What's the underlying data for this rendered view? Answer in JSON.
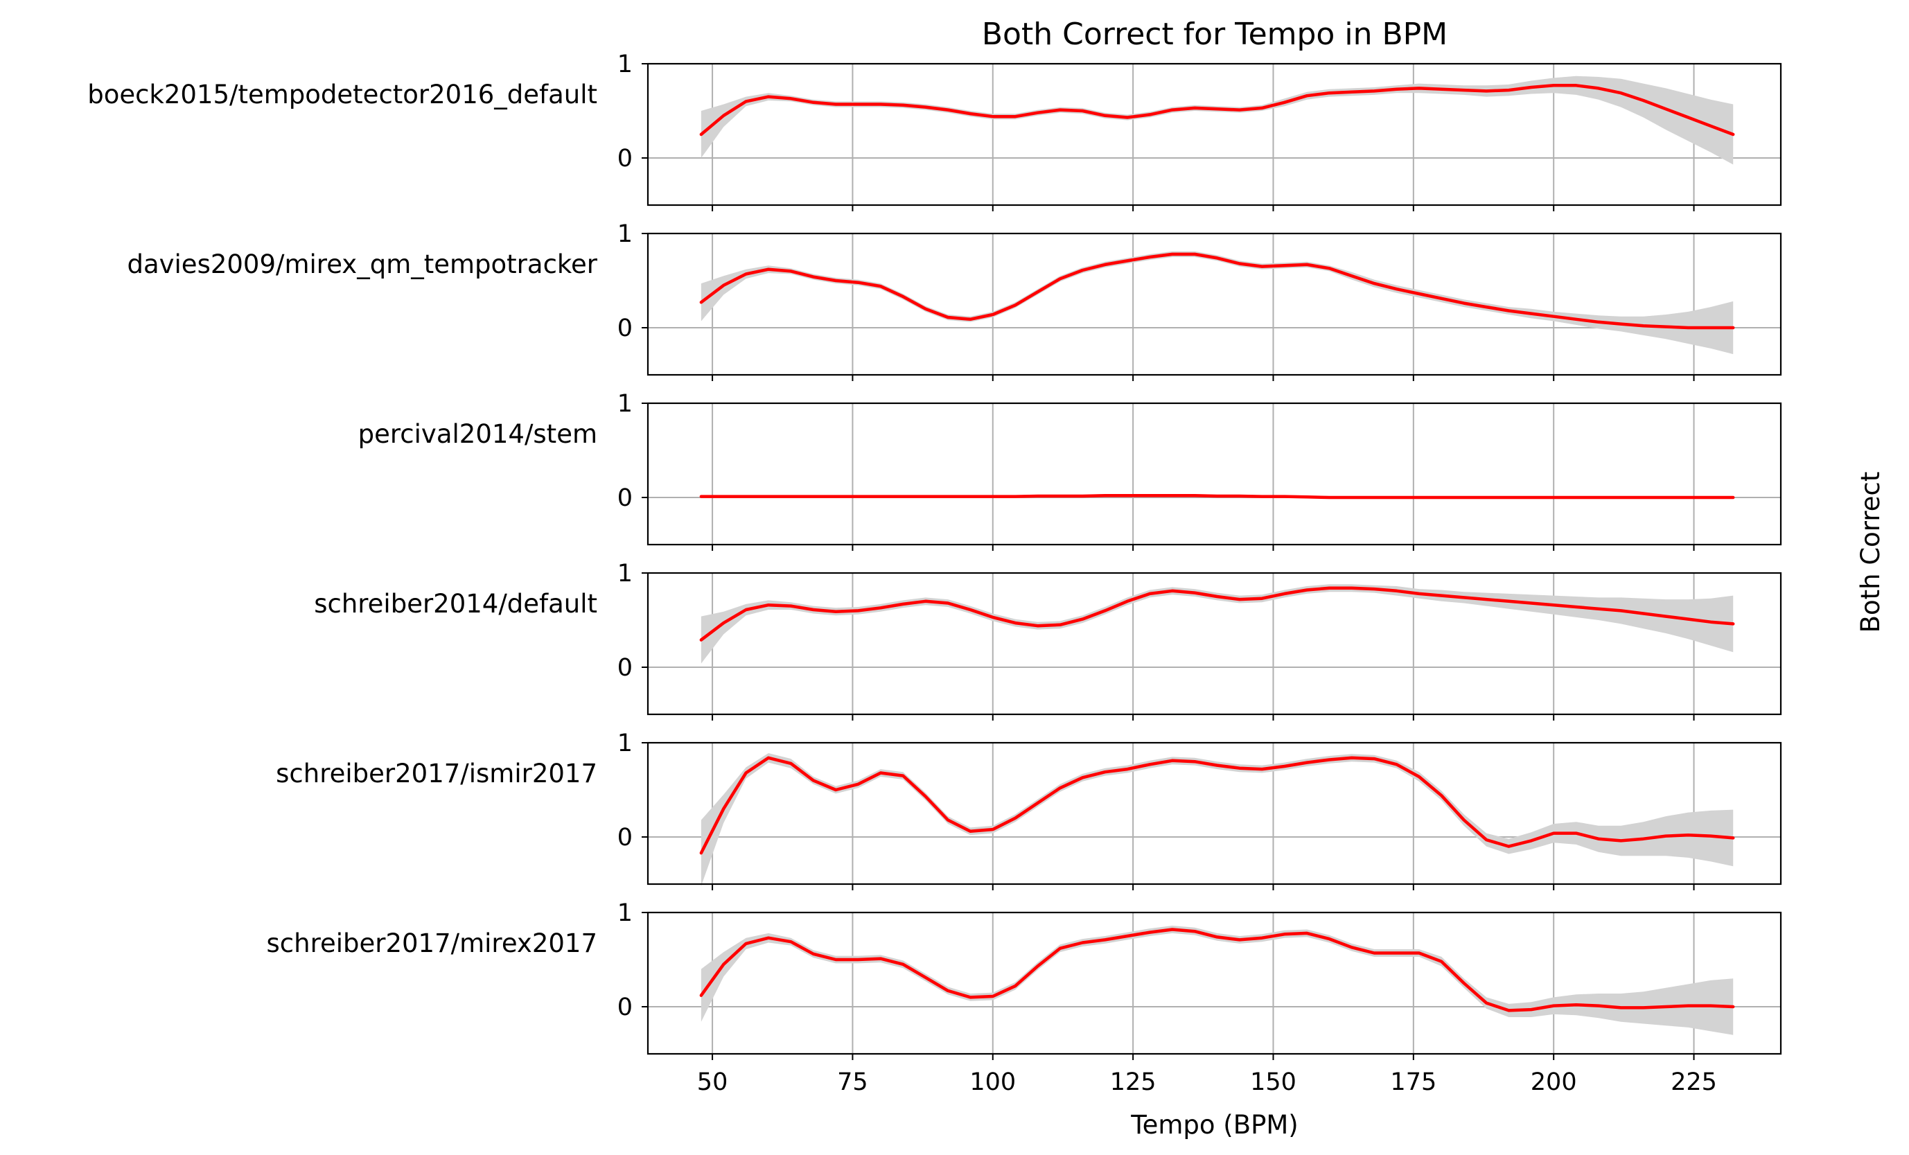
{
  "chart_data": {
    "type": "line",
    "title": "Both Correct for Tempo in BPM",
    "xlabel": "Tempo (BPM)",
    "ylabel": "Both Correct",
    "x_ticks": [
      50,
      75,
      100,
      125,
      150,
      175,
      200,
      225
    ],
    "y_ticks": [
      0,
      1
    ],
    "xlim": [
      38.5,
      240.5
    ],
    "ylim": [
      -0.5,
      1.0
    ],
    "grid": true,
    "band_color": "#d3d3d3",
    "line_color": "#ff0000",
    "x": [
      48,
      52,
      56,
      60,
      64,
      68,
      72,
      76,
      80,
      84,
      88,
      92,
      96,
      100,
      104,
      108,
      112,
      116,
      120,
      124,
      128,
      132,
      136,
      140,
      144,
      148,
      152,
      156,
      160,
      164,
      168,
      172,
      176,
      180,
      184,
      188,
      192,
      196,
      200,
      204,
      208,
      212,
      216,
      220,
      224,
      228,
      232
    ],
    "series": [
      {
        "name": "boeck2015/tempodetector2016_default",
        "values": [
          0.25,
          0.45,
          0.6,
          0.65,
          0.63,
          0.59,
          0.57,
          0.57,
          0.57,
          0.56,
          0.54,
          0.51,
          0.47,
          0.44,
          0.44,
          0.48,
          0.51,
          0.5,
          0.45,
          0.43,
          0.46,
          0.51,
          0.53,
          0.52,
          0.51,
          0.53,
          0.59,
          0.66,
          0.69,
          0.7,
          0.71,
          0.73,
          0.74,
          0.73,
          0.72,
          0.71,
          0.72,
          0.75,
          0.77,
          0.77,
          0.74,
          0.69,
          0.61,
          0.52,
          0.43,
          0.34,
          0.25
        ],
        "band": [
          0.25,
          0.12,
          0.05,
          0.04,
          0.03,
          0.03,
          0.03,
          0.03,
          0.03,
          0.03,
          0.03,
          0.03,
          0.03,
          0.03,
          0.03,
          0.03,
          0.03,
          0.03,
          0.03,
          0.03,
          0.03,
          0.03,
          0.03,
          0.03,
          0.03,
          0.03,
          0.04,
          0.04,
          0.04,
          0.04,
          0.04,
          0.04,
          0.05,
          0.05,
          0.05,
          0.06,
          0.06,
          0.07,
          0.08,
          0.1,
          0.12,
          0.15,
          0.18,
          0.22,
          0.25,
          0.28,
          0.32
        ]
      },
      {
        "name": "davies2009/mirex_qm_tempotracker",
        "values": [
          0.27,
          0.45,
          0.57,
          0.62,
          0.6,
          0.54,
          0.5,
          0.48,
          0.44,
          0.33,
          0.2,
          0.11,
          0.09,
          0.14,
          0.24,
          0.38,
          0.52,
          0.61,
          0.67,
          0.71,
          0.75,
          0.78,
          0.78,
          0.74,
          0.68,
          0.65,
          0.66,
          0.67,
          0.63,
          0.55,
          0.47,
          0.41,
          0.36,
          0.31,
          0.26,
          0.22,
          0.18,
          0.15,
          0.12,
          0.09,
          0.06,
          0.04,
          0.02,
          0.01,
          0.0,
          0.0,
          0.0
        ],
        "band": [
          0.2,
          0.1,
          0.05,
          0.04,
          0.03,
          0.03,
          0.03,
          0.03,
          0.03,
          0.03,
          0.03,
          0.03,
          0.03,
          0.03,
          0.03,
          0.03,
          0.03,
          0.03,
          0.03,
          0.03,
          0.03,
          0.03,
          0.03,
          0.03,
          0.03,
          0.03,
          0.03,
          0.03,
          0.03,
          0.04,
          0.04,
          0.04,
          0.04,
          0.04,
          0.04,
          0.04,
          0.04,
          0.05,
          0.05,
          0.06,
          0.07,
          0.08,
          0.1,
          0.13,
          0.17,
          0.22,
          0.28
        ]
      },
      {
        "name": "percival2014/stem",
        "values": [
          0.01,
          0.01,
          0.01,
          0.01,
          0.01,
          0.01,
          0.01,
          0.01,
          0.01,
          0.01,
          0.01,
          0.01,
          0.01,
          0.01,
          0.01,
          0.015,
          0.015,
          0.015,
          0.02,
          0.02,
          0.02,
          0.02,
          0.02,
          0.015,
          0.015,
          0.01,
          0.01,
          0.005,
          0.0,
          0.0,
          0.0,
          0.0,
          0.0,
          0.0,
          0.0,
          0.0,
          0.0,
          0.0,
          0.0,
          0.0,
          0.0,
          0.0,
          0.0,
          0.0,
          0.0,
          0.0,
          0.0
        ],
        "band": [
          0.015,
          0.015,
          0.015,
          0.015,
          0.015,
          0.015,
          0.015,
          0.015,
          0.015,
          0.015,
          0.015,
          0.015,
          0.015,
          0.015,
          0.015,
          0.015,
          0.015,
          0.015,
          0.015,
          0.015,
          0.015,
          0.015,
          0.015,
          0.015,
          0.015,
          0.015,
          0.015,
          0.015,
          0.015,
          0.015,
          0.015,
          0.015,
          0.015,
          0.015,
          0.015,
          0.015,
          0.015,
          0.015,
          0.015,
          0.015,
          0.015,
          0.015,
          0.015,
          0.015,
          0.015,
          0.015,
          0.015
        ]
      },
      {
        "name": "schreiber2014/default",
        "values": [
          0.29,
          0.47,
          0.61,
          0.66,
          0.65,
          0.61,
          0.59,
          0.6,
          0.63,
          0.67,
          0.7,
          0.68,
          0.61,
          0.53,
          0.47,
          0.44,
          0.45,
          0.51,
          0.6,
          0.7,
          0.78,
          0.81,
          0.79,
          0.75,
          0.72,
          0.73,
          0.78,
          0.82,
          0.84,
          0.84,
          0.83,
          0.81,
          0.78,
          0.76,
          0.74,
          0.72,
          0.7,
          0.68,
          0.66,
          0.64,
          0.62,
          0.6,
          0.57,
          0.54,
          0.51,
          0.48,
          0.46
        ],
        "band": [
          0.25,
          0.12,
          0.06,
          0.05,
          0.04,
          0.04,
          0.04,
          0.04,
          0.04,
          0.04,
          0.04,
          0.04,
          0.04,
          0.04,
          0.04,
          0.04,
          0.04,
          0.04,
          0.04,
          0.04,
          0.04,
          0.04,
          0.04,
          0.04,
          0.04,
          0.04,
          0.04,
          0.04,
          0.04,
          0.04,
          0.04,
          0.05,
          0.05,
          0.06,
          0.06,
          0.07,
          0.08,
          0.09,
          0.1,
          0.11,
          0.12,
          0.14,
          0.16,
          0.18,
          0.21,
          0.25,
          0.3
        ]
      },
      {
        "name": "schreiber2017/ismir2017",
        "values": [
          -0.17,
          0.3,
          0.68,
          0.84,
          0.78,
          0.6,
          0.5,
          0.56,
          0.68,
          0.65,
          0.43,
          0.18,
          0.06,
          0.08,
          0.2,
          0.36,
          0.52,
          0.63,
          0.69,
          0.72,
          0.77,
          0.81,
          0.8,
          0.76,
          0.73,
          0.72,
          0.75,
          0.79,
          0.82,
          0.84,
          0.83,
          0.77,
          0.64,
          0.44,
          0.18,
          -0.03,
          -0.1,
          -0.04,
          0.04,
          0.04,
          -0.02,
          -0.04,
          -0.02,
          0.01,
          0.02,
          0.01,
          -0.01
        ],
        "band": [
          0.35,
          0.15,
          0.06,
          0.05,
          0.05,
          0.04,
          0.04,
          0.04,
          0.04,
          0.04,
          0.04,
          0.04,
          0.04,
          0.04,
          0.04,
          0.04,
          0.04,
          0.04,
          0.04,
          0.04,
          0.04,
          0.04,
          0.04,
          0.04,
          0.04,
          0.04,
          0.04,
          0.04,
          0.04,
          0.04,
          0.04,
          0.04,
          0.05,
          0.05,
          0.06,
          0.07,
          0.08,
          0.09,
          0.1,
          0.12,
          0.14,
          0.16,
          0.18,
          0.21,
          0.24,
          0.27,
          0.3
        ]
      },
      {
        "name": "schreiber2017/mirex2017",
        "values": [
          0.12,
          0.45,
          0.67,
          0.73,
          0.69,
          0.56,
          0.5,
          0.5,
          0.51,
          0.45,
          0.31,
          0.17,
          0.1,
          0.11,
          0.22,
          0.43,
          0.62,
          0.68,
          0.71,
          0.75,
          0.79,
          0.82,
          0.8,
          0.74,
          0.71,
          0.73,
          0.77,
          0.78,
          0.72,
          0.63,
          0.57,
          0.57,
          0.57,
          0.48,
          0.25,
          0.04,
          -0.04,
          -0.03,
          0.01,
          0.02,
          0.01,
          -0.01,
          -0.01,
          0.0,
          0.01,
          0.01,
          0.0
        ],
        "band": [
          0.28,
          0.13,
          0.06,
          0.05,
          0.04,
          0.04,
          0.04,
          0.04,
          0.04,
          0.04,
          0.04,
          0.04,
          0.04,
          0.04,
          0.04,
          0.04,
          0.04,
          0.04,
          0.04,
          0.04,
          0.04,
          0.04,
          0.04,
          0.04,
          0.04,
          0.04,
          0.04,
          0.04,
          0.04,
          0.04,
          0.04,
          0.04,
          0.04,
          0.05,
          0.05,
          0.06,
          0.07,
          0.08,
          0.09,
          0.11,
          0.13,
          0.15,
          0.17,
          0.2,
          0.23,
          0.27,
          0.3
        ]
      }
    ]
  }
}
